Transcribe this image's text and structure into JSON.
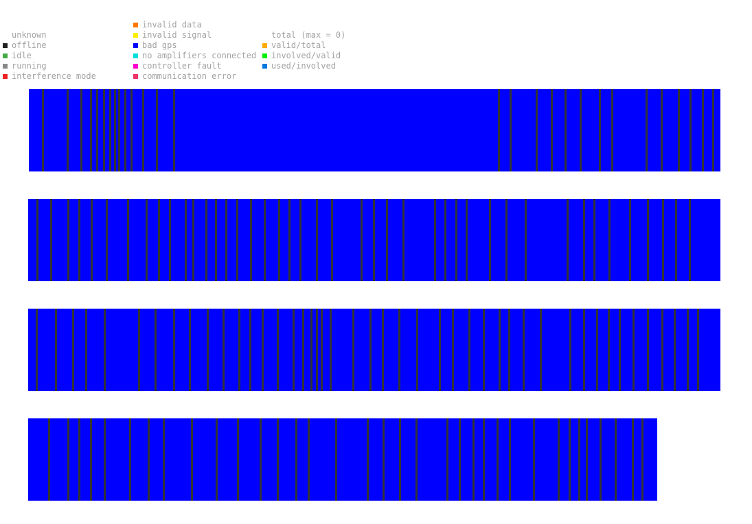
{
  "legend": {
    "status": [
      {
        "label": "unknown",
        "color": ""
      },
      {
        "label": "offline",
        "color": "#222222"
      },
      {
        "label": "idle",
        "color": "#44aa44"
      },
      {
        "label": "running",
        "color": "#888888"
      },
      {
        "label": "interference mode",
        "color": "#ee2222"
      }
    ],
    "errors": [
      {
        "label": "invalid data",
        "color": "#ff7700"
      },
      {
        "label": "invalid signal",
        "color": "#ffee00"
      },
      {
        "label": "bad gps",
        "color": "#0000ff"
      },
      {
        "label": "no amplifiers connected",
        "color": "#00dddd"
      },
      {
        "label": "controller fault",
        "color": "#ff00cc"
      },
      {
        "label": "communication error",
        "color": "#ee3366"
      }
    ],
    "totals": [
      {
        "label": "total (max = 0)",
        "color": ""
      },
      {
        "label": "valid/total",
        "color": "#ffaa00"
      },
      {
        "label": "involved/valid",
        "color": "#00ee00"
      },
      {
        "label": "used/involved",
        "color": "#0077dd"
      }
    ]
  },
  "colors": {
    "strip_fill": "#0000ff",
    "tick": "#333333"
  }
}
